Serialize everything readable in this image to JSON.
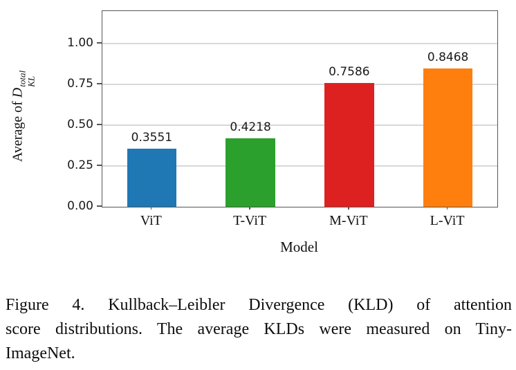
{
  "chart_data": {
    "type": "bar",
    "categories": [
      "ViT",
      "T-ViT",
      "M-ViT",
      "L-ViT"
    ],
    "values": [
      0.3551,
      0.4218,
      0.7586,
      0.8468
    ],
    "value_labels": [
      "0.3551",
      "0.4218",
      "0.7586",
      "0.8468"
    ],
    "bar_colors": [
      "#1f77b4",
      "#2ca02c",
      "#dd2121",
      "#ff7f0e"
    ],
    "title": "",
    "xlabel": "Model",
    "ylabel": {
      "prefix": "Average of ",
      "var": "D",
      "sup": "total",
      "sub": "KL"
    },
    "ylim": [
      0,
      1.2
    ],
    "yticks": [
      0,
      0.25,
      0.5,
      0.75,
      1.0
    ],
    "ytick_labels": [
      "0.00",
      "0.25",
      "0.50",
      "0.75",
      "1.00"
    ],
    "grid": "horizontal",
    "legend": "none",
    "bar_width_ratio": 0.5
  },
  "caption": {
    "lines": [
      "Figure 4. Kullback–Leibler Divergence (KLD) of attention",
      "score distributions. The average KLDs were measured on Tiny-",
      "ImageNet."
    ]
  },
  "colors": {
    "frame": "#555555",
    "gridline": "#d8d8d8",
    "tick_text": "#1a1a1a",
    "serif_text": "#111111"
  }
}
